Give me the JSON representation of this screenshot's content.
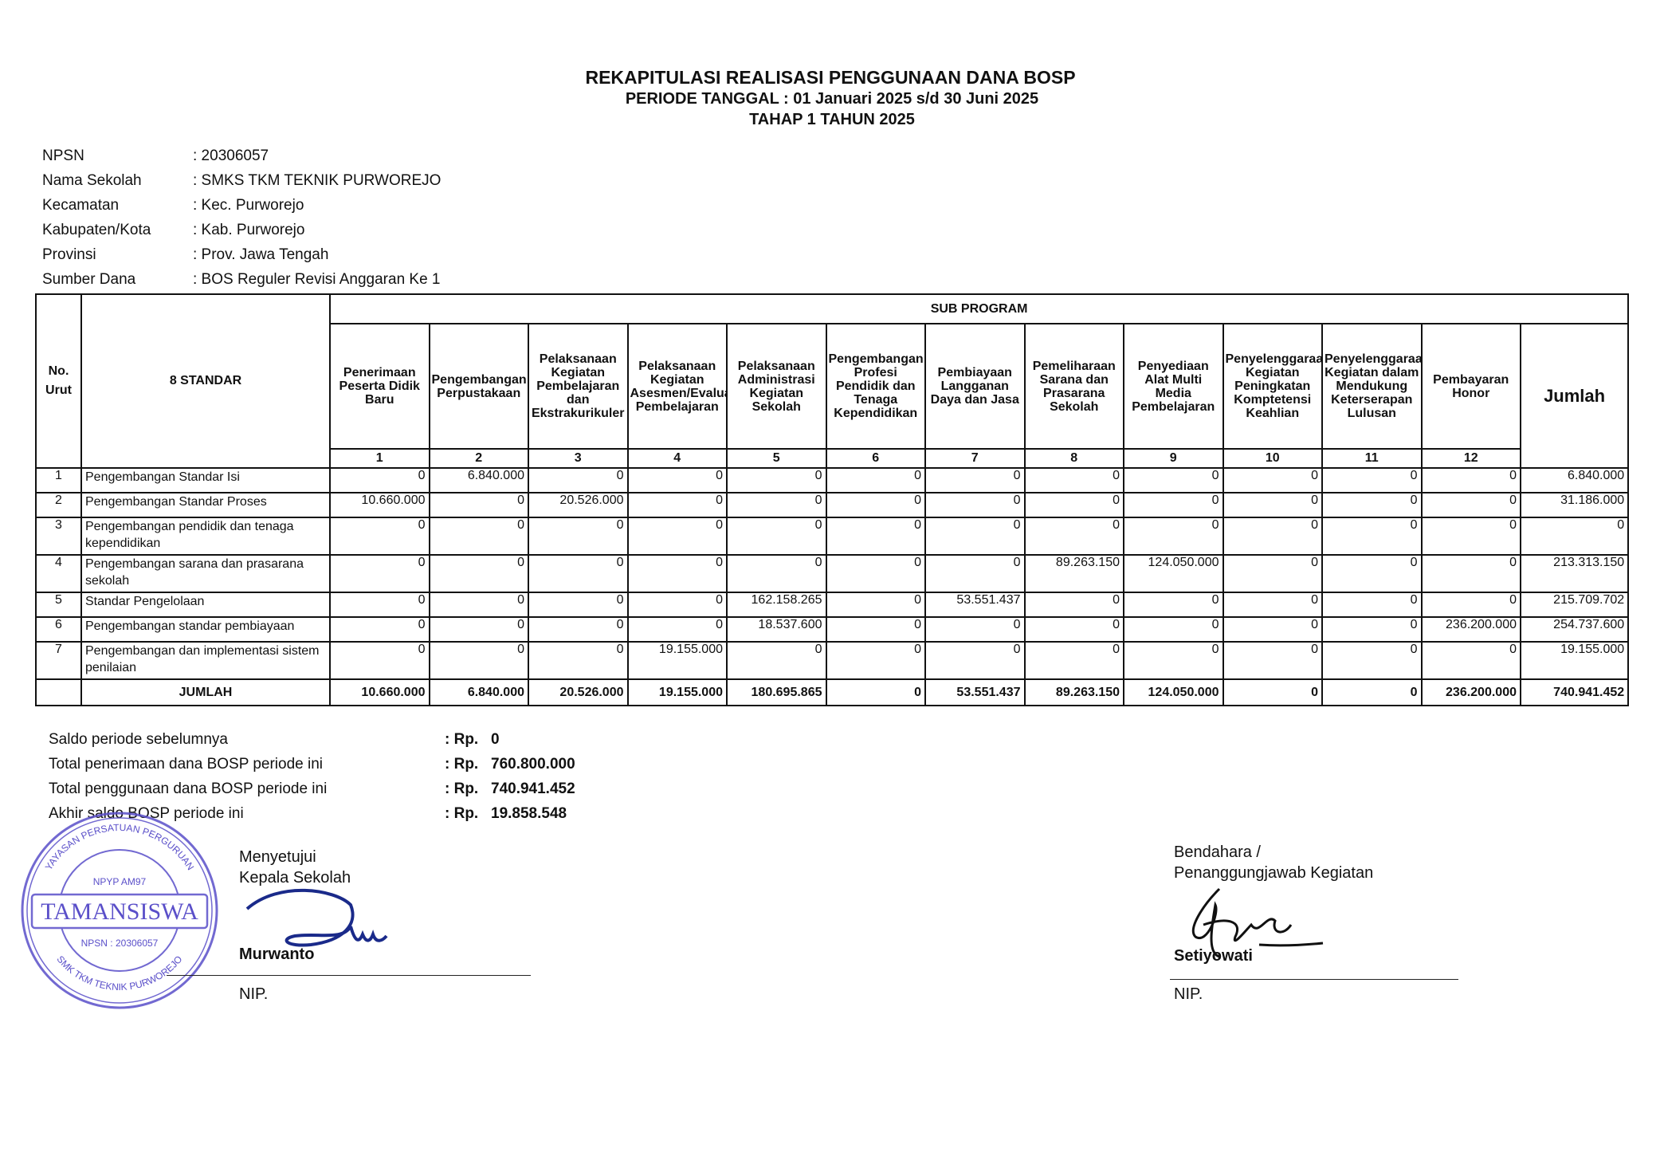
{
  "header": {
    "title": "REKAPITULASI REALISASI PENGGUNAAN DANA BOSP",
    "period": "PERIODE TANGGAL : 01 Januari 2025 s/d 30 Juni 2025",
    "stage": "TAHAP 1 TAHUN 2025"
  },
  "info": [
    {
      "label": "NPSN",
      "value": ": 20306057"
    },
    {
      "label": "Nama Sekolah",
      "value": ": SMKS TKM TEKNIK PURWOREJO"
    },
    {
      "label": "Kecamatan",
      "value": ": Kec. Purworejo"
    },
    {
      "label": "Kabupaten/Kota",
      "value": ": Kab. Purworejo"
    },
    {
      "label": "Provinsi",
      "value": ": Prov. Jawa Tengah"
    },
    {
      "label": "Sumber Dana",
      "value": ": BOS Reguler Revisi Anggaran Ke 1"
    }
  ],
  "table": {
    "no_header": "No. Urut",
    "standar_header": "8 STANDAR",
    "sub_program_header": "SUB PROGRAM",
    "jumlah_header": "Jumlah",
    "columns": [
      {
        "num": "1",
        "label": "Penerimaan Peserta Didik Baru"
      },
      {
        "num": "2",
        "label": "Pengembangan Perpustakaan"
      },
      {
        "num": "3",
        "label": "Pelaksanaan Kegiatan Pembelajaran dan Ekstrakurikuler"
      },
      {
        "num": "4",
        "label": "Pelaksanaan Kegiatan Asesmen/Evaluasi Pembelajaran"
      },
      {
        "num": "5",
        "label": "Pelaksanaan Administrasi Kegiatan Sekolah"
      },
      {
        "num": "6",
        "label": "Pengembangan Profesi Pendidik dan Tenaga Kependidikan"
      },
      {
        "num": "7",
        "label": "Pembiayaan Langganan Daya dan Jasa"
      },
      {
        "num": "8",
        "label": "Pemeliharaan Sarana dan Prasarana Sekolah"
      },
      {
        "num": "9",
        "label": "Penyediaan Alat Multi Media Pembelajaran"
      },
      {
        "num": "10",
        "label": "Penyelenggaraan Kegiatan Peningkatan Komptetensi Keahlian"
      },
      {
        "num": "11",
        "label": "Penyelenggaraan Kegiatan dalam Mendukung Keterserapan Lulusan"
      },
      {
        "num": "12",
        "label": "Pembayaran Honor"
      }
    ],
    "rows": [
      {
        "no": "1",
        "standar": "Pengembangan Standar Isi",
        "values": [
          "0",
          "6.840.000",
          "0",
          "0",
          "0",
          "0",
          "0",
          "0",
          "0",
          "0",
          "0",
          "0"
        ],
        "jumlah": "6.840.000"
      },
      {
        "no": "2",
        "standar": "Pengembangan Standar Proses",
        "values": [
          "10.660.000",
          "0",
          "20.526.000",
          "0",
          "0",
          "0",
          "0",
          "0",
          "0",
          "0",
          "0",
          "0"
        ],
        "jumlah": "31.186.000"
      },
      {
        "no": "3",
        "standar": "Pengembangan pendidik dan tenaga kependidikan",
        "values": [
          "0",
          "0",
          "0",
          "0",
          "0",
          "0",
          "0",
          "0",
          "0",
          "0",
          "0",
          "0"
        ],
        "jumlah": "0"
      },
      {
        "no": "4",
        "standar": "Pengembangan sarana dan prasarana sekolah",
        "values": [
          "0",
          "0",
          "0",
          "0",
          "0",
          "0",
          "0",
          "89.263.150",
          "124.050.000",
          "0",
          "0",
          "0"
        ],
        "jumlah": "213.313.150"
      },
      {
        "no": "5",
        "standar": "Standar Pengelolaan",
        "values": [
          "0",
          "0",
          "0",
          "0",
          "162.158.265",
          "0",
          "53.551.437",
          "0",
          "0",
          "0",
          "0",
          "0"
        ],
        "jumlah": "215.709.702"
      },
      {
        "no": "6",
        "standar": "Pengembangan standar pembiayaan",
        "values": [
          "0",
          "0",
          "0",
          "0",
          "18.537.600",
          "0",
          "0",
          "0",
          "0",
          "0",
          "0",
          "236.200.000"
        ],
        "jumlah": "254.737.600"
      },
      {
        "no": "7",
        "standar": "Pengembangan dan implementasi sistem penilaian",
        "values": [
          "0",
          "0",
          "0",
          "19.155.000",
          "0",
          "0",
          "0",
          "0",
          "0",
          "0",
          "0",
          "0"
        ],
        "jumlah": "19.155.000"
      }
    ],
    "total": {
      "label": "JUMLAH",
      "values": [
        "10.660.000",
        "6.840.000",
        "20.526.000",
        "19.155.000",
        "180.695.865",
        "0",
        "53.551.437",
        "89.263.150",
        "124.050.000",
        "0",
        "0",
        "236.200.000"
      ],
      "jumlah": "740.941.452"
    }
  },
  "summary": [
    {
      "label": "Saldo periode sebelumnya",
      "rp": ": Rp.",
      "value": "0"
    },
    {
      "label": "Total penerimaan dana BOSP periode ini",
      "rp": ": Rp.",
      "value": "760.800.000"
    },
    {
      "label": "Total penggunaan dana BOSP periode ini",
      "rp": ": Rp.",
      "value": "740.941.452"
    },
    {
      "label": "Akhir saldo BOSP periode ini",
      "rp": ": Rp.",
      "value": "19.858.548"
    }
  ],
  "signatures": {
    "left": {
      "line1": "Menyetujui",
      "line2": "Kepala Sekolah",
      "name": "Murwanto",
      "nip": "NIP."
    },
    "right": {
      "line1": "Bendahara /",
      "line2": "Penanggungjawab Kegiatan",
      "name": "Setiyowati",
      "nip": "NIP."
    }
  },
  "stamp": {
    "text_top": "YAYASAN PERSATUAN PERGURUAN",
    "text_mid": "TAMANSISWA",
    "text_code": "NPYP  AM97",
    "text_npsn": "NPSN : 20306057",
    "text_bottom": "SMK TKM TEKNIK PURWOREJO",
    "color": "#5a4fc9"
  },
  "colors": {
    "ink": "#111111",
    "signature": "#1a2a8a"
  }
}
